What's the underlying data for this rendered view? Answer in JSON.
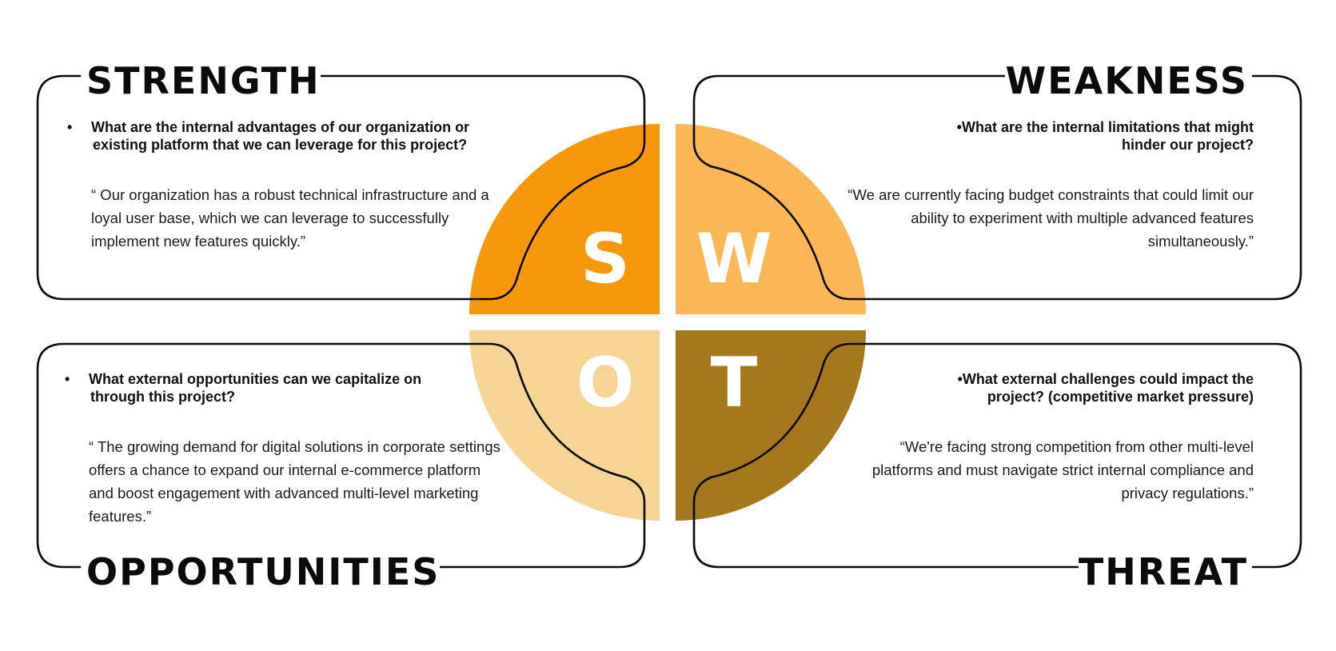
{
  "colors": {
    "strength": "#F7980A",
    "weakness": "#FBB755",
    "opportunities": "#F7D394",
    "threat": "#A5781D",
    "outline": "#0b0b0b",
    "letter": "#ffffff"
  },
  "letters": {
    "s": "S",
    "w": "W",
    "o": "O",
    "t": "T"
  },
  "strength": {
    "title": "STRENGTH",
    "question": "What are the internal advantages of our organization or existing platform that we can leverage for this project?",
    "quote": "“ Our organization has a robust technical infrastructure and a loyal user base, which we can leverage to successfully implement new features quickly.”"
  },
  "weakness": {
    "title": "WEAKNESS",
    "question": "What are the internal limitations that might hinder our project?",
    "quote": "“We are currently facing budget constraints that could limit our ability to experiment with multiple advanced features simultaneously.”"
  },
  "opportunities": {
    "title": "OPPORTUNITIES",
    "question": "What external opportunities can we capitalize on through this project?",
    "quote": "“ The growing demand for digital solutions in corporate settings offers a chance to expand our internal e-commerce platform and boost engagement with advanced multi-level marketing features.”"
  },
  "threat": {
    "title": "THREAT",
    "question": "What external challenges could impact the project? (competitive market pressure)",
    "quote": "“We're facing strong competition from other multi-level platforms and must navigate strict internal compliance and privacy regulations.”"
  }
}
